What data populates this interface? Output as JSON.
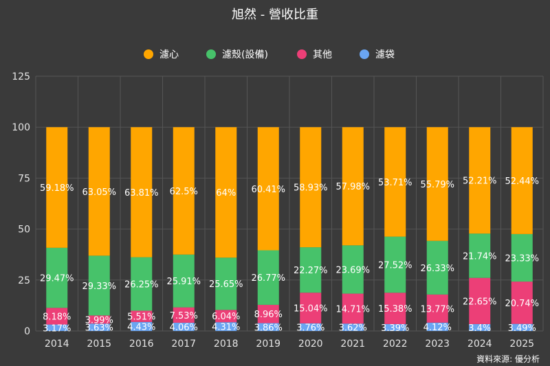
{
  "chart_data": {
    "type": "bar",
    "stacked": true,
    "title": "旭然 - 營收比重",
    "source": "資料來源: 優分析",
    "categories": [
      "2014",
      "2015",
      "2016",
      "2017",
      "2018",
      "2019",
      "2020",
      "2021",
      "2022",
      "2023",
      "2024",
      "2025"
    ],
    "ylim": [
      0,
      125
    ],
    "yticks": [
      0,
      25,
      50,
      75,
      100,
      125
    ],
    "grid": true,
    "legend_position": "top",
    "series": [
      {
        "name": "濾袋",
        "color": "#6aa5f2",
        "values": [
          3.17,
          3.63,
          4.43,
          4.06,
          4.31,
          3.86,
          3.76,
          3.62,
          3.39,
          4.12,
          3.4,
          3.49
        ],
        "labels": [
          "3.17%",
          "3.63%",
          "4.43%",
          "4.06%",
          "4.31%",
          "3.86%",
          "3.76%",
          "3.62%",
          "3.39%",
          "4.12%",
          "3.4%",
          "3.49%"
        ]
      },
      {
        "name": "其他",
        "color": "#ec3f77",
        "values": [
          8.18,
          3.99,
          5.51,
          7.53,
          6.04,
          8.96,
          15.04,
          14.71,
          15.38,
          13.77,
          22.65,
          20.74
        ],
        "labels": [
          "8.18%",
          "3.99%",
          "5.51%",
          "7.53%",
          "6.04%",
          "8.96%",
          "15.04%",
          "14.71%",
          "15.38%",
          "13.77%",
          "22.65%",
          "20.74%"
        ]
      },
      {
        "name": "濾殼(設備)",
        "color": "#47c26a",
        "values": [
          29.47,
          29.33,
          26.25,
          25.91,
          25.65,
          26.77,
          22.27,
          23.69,
          27.52,
          26.33,
          21.74,
          23.33
        ],
        "labels": [
          "29.47%",
          "29.33%",
          "26.25%",
          "25.91%",
          "25.65%",
          "26.77%",
          "22.27%",
          "23.69%",
          "27.52%",
          "26.33%",
          "21.74%",
          "23.33%"
        ]
      },
      {
        "name": "濾心",
        "color": "#ffa600",
        "values": [
          59.18,
          63.05,
          63.81,
          62.5,
          64,
          60.41,
          58.93,
          57.98,
          53.71,
          55.79,
          52.21,
          52.44
        ],
        "labels": [
          "59.18%",
          "63.05%",
          "63.81%",
          "62.5%",
          "64%",
          "60.41%",
          "58.93%",
          "57.98%",
          "53.71%",
          "55.79%",
          "52.21%",
          "52.44%"
        ]
      }
    ],
    "legend_order": [
      "濾心",
      "濾殼(設備)",
      "其他",
      "濾袋"
    ]
  }
}
